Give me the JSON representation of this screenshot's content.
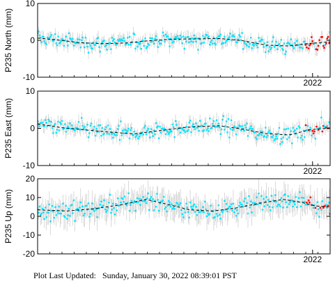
{
  "chart_data": [
    {
      "type": "scatter",
      "ylabel": "P235 North (mm)",
      "ylim": [
        -10,
        10
      ],
      "yticks": [
        -10,
        0,
        10
      ],
      "year_label": "2022",
      "baseline": 0.0,
      "amplitude": 1.1,
      "noise": 1.7,
      "error": 1.4,
      "model": [
        [
          0.0,
          0.6
        ],
        [
          0.07,
          0.1
        ],
        [
          0.14,
          -0.6
        ],
        [
          0.22,
          -0.9
        ],
        [
          0.31,
          -0.7
        ],
        [
          0.38,
          -0.1
        ],
        [
          0.46,
          0.3
        ],
        [
          0.55,
          0.4
        ],
        [
          0.62,
          0.5
        ],
        [
          0.7,
          -0.1
        ],
        [
          0.78,
          -1.3
        ],
        [
          0.86,
          -1.5
        ],
        [
          0.92,
          -0.9
        ],
        [
          1.0,
          -0.4
        ]
      ]
    },
    {
      "type": "scatter",
      "ylabel": "P235 East (mm)",
      "ylim": [
        -10,
        10
      ],
      "yticks": [
        -10,
        0,
        10
      ],
      "year_label": "2022",
      "baseline": 0.5,
      "amplitude": 1.3,
      "noise": 1.8,
      "error": 1.5,
      "model": [
        [
          0.0,
          1.2
        ],
        [
          0.08,
          0.2
        ],
        [
          0.16,
          -0.4
        ],
        [
          0.24,
          -1.0
        ],
        [
          0.33,
          -1.5
        ],
        [
          0.42,
          -0.6
        ],
        [
          0.5,
          0.2
        ],
        [
          0.56,
          0.5
        ],
        [
          0.62,
          0.7
        ],
        [
          0.7,
          -0.2
        ],
        [
          0.78,
          -1.4
        ],
        [
          0.86,
          -1.8
        ],
        [
          0.93,
          -0.4
        ],
        [
          1.0,
          0.1
        ]
      ]
    },
    {
      "type": "scatter",
      "ylabel": "P235 Up (mm)",
      "ylim": [
        -20,
        20
      ],
      "yticks": [
        -20,
        -10,
        0,
        10,
        20
      ],
      "year_label": "2022",
      "baseline": 5.0,
      "amplitude": 3.0,
      "noise": 4.0,
      "error": 5.5,
      "model": [
        [
          0.0,
          3.5
        ],
        [
          0.1,
          2.8
        ],
        [
          0.2,
          4.2
        ],
        [
          0.3,
          6.5
        ],
        [
          0.37,
          9.0
        ],
        [
          0.44,
          6.5
        ],
        [
          0.52,
          3.5
        ],
        [
          0.6,
          2.8
        ],
        [
          0.68,
          4.5
        ],
        [
          0.76,
          7.0
        ],
        [
          0.84,
          9.0
        ],
        [
          0.9,
          7.5
        ],
        [
          0.95,
          5.5
        ],
        [
          1.0,
          5.0
        ]
      ]
    }
  ],
  "colors": {
    "points": "#00e5ff",
    "rapid_points": "#ff0000",
    "error_bars": "#c8c8c8",
    "model_line": "#000000"
  },
  "footer": {
    "label": "Plot Last Updated:",
    "value": "Sunday, January 30, 2022 08:39:01 PST"
  }
}
